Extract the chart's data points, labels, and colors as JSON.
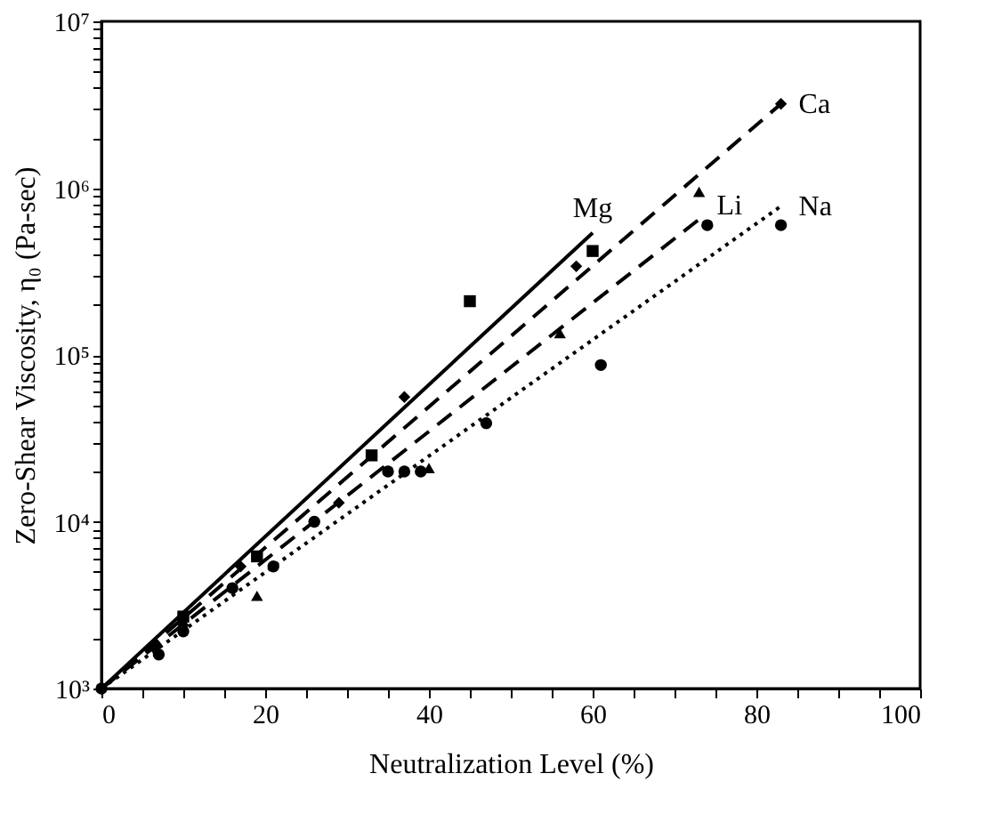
{
  "chart_data": {
    "type": "scatter",
    "xlabel": "Neutralization Level (%)",
    "ylabel": "Zero-Shear Viscosity, η₀ (Pa-sec)",
    "log": "y",
    "grid": false,
    "xlim": [
      0,
      100
    ],
    "ylim": [
      1000,
      10000000
    ],
    "xticks": [
      0,
      {
        "value": 5,
        "label": null
      },
      {
        "value": 10,
        "label": null
      },
      {
        "value": 15,
        "label": null
      },
      20,
      {
        "value": 25,
        "label": null
      },
      {
        "value": 30,
        "label": null
      },
      {
        "value": 35,
        "label": null
      },
      40,
      {
        "value": 45,
        "label": null
      },
      {
        "value": 50,
        "label": null
      },
      {
        "value": 55,
        "label": null
      },
      60,
      {
        "value": 65,
        "label": null
      },
      {
        "value": 70,
        "label": null
      },
      {
        "value": 75,
        "label": null
      },
      80,
      {
        "value": 85,
        "label": null
      },
      {
        "value": 90,
        "label": null
      },
      {
        "value": 95,
        "label": null
      },
      100
    ],
    "yticks": [
      {
        "value": 1000,
        "label": "10³"
      },
      {
        "value": 2000,
        "label": null
      },
      {
        "value": 3000,
        "label": null
      },
      {
        "value": 4000,
        "label": null
      },
      {
        "value": 5000,
        "label": null
      },
      {
        "value": 6000,
        "label": null
      },
      {
        "value": 7000,
        "label": null
      },
      {
        "value": 8000,
        "label": null
      },
      {
        "value": 9000,
        "label": null
      },
      {
        "value": 10000,
        "label": "10⁴"
      },
      {
        "value": 20000,
        "label": null
      },
      {
        "value": 30000,
        "label": null
      },
      {
        "value": 40000,
        "label": null
      },
      {
        "value": 50000,
        "label": null
      },
      {
        "value": 60000,
        "label": null
      },
      {
        "value": 70000,
        "label": null
      },
      {
        "value": 80000,
        "label": null
      },
      {
        "value": 90000,
        "label": null
      },
      {
        "value": 100000,
        "label": "10⁵"
      },
      {
        "value": 200000,
        "label": null
      },
      {
        "value": 300000,
        "label": null
      },
      {
        "value": 400000,
        "label": null
      },
      {
        "value": 500000,
        "label": null
      },
      {
        "value": 600000,
        "label": null
      },
      {
        "value": 700000,
        "label": null
      },
      {
        "value": 800000,
        "label": null
      },
      {
        "value": 900000,
        "label": null
      },
      {
        "value": 1000000,
        "label": "10⁶"
      },
      {
        "value": 2000000,
        "label": null
      },
      {
        "value": 3000000,
        "label": null
      },
      {
        "value": 4000000,
        "label": null
      },
      {
        "value": 5000000,
        "label": null
      },
      {
        "value": 6000000,
        "label": null
      },
      {
        "value": 7000000,
        "label": null
      },
      {
        "value": 8000000,
        "label": null
      },
      {
        "value": 9000000,
        "label": null
      },
      {
        "value": 10000000,
        "label": "10⁷"
      }
    ],
    "series": [
      {
        "type": "line",
        "name": "Mg",
        "color": "#000000",
        "line_style": "solid",
        "x": [
          0,
          60
        ],
        "values": [
          1000,
          540000
        ]
      },
      {
        "type": "line",
        "name": "Ca",
        "color": "#000000",
        "line_style": "dashed",
        "x": [
          0,
          83
        ],
        "values": [
          1000,
          3200000
        ]
      },
      {
        "type": "line",
        "name": "Li",
        "color": "#000000",
        "line_style": "dashed",
        "x": [
          0,
          73
        ],
        "values": [
          1000,
          650000
        ]
      },
      {
        "type": "line",
        "name": "Na",
        "color": "#000000",
        "line_style": "dotted",
        "x": [
          0,
          83
        ],
        "values": [
          1000,
          780000
        ]
      },
      {
        "marker": "square",
        "color": "#000000",
        "x": [
          10,
          19,
          33,
          45,
          60
        ],
        "values": [
          2700,
          6200,
          25000,
          210000,
          420000
        ]
      },
      {
        "marker": "diamond",
        "color": "#000000",
        "x": [
          10,
          17,
          29,
          37,
          58,
          83
        ],
        "values": [
          2400,
          5400,
          13000,
          56000,
          340000,
          3200000
        ]
      },
      {
        "marker": "triangle",
        "color": "#000000",
        "x": [
          19,
          40,
          56,
          73
        ],
        "values": [
          3600,
          21000,
          135000,
          950000
        ]
      },
      {
        "marker": "circle",
        "color": "#000000",
        "x": [
          0,
          6.5,
          7,
          10,
          16,
          21,
          26,
          35,
          37,
          39,
          47,
          61,
          74,
          83
        ],
        "values": [
          1000,
          1800,
          1600,
          2200,
          4000,
          5400,
          10000,
          20000,
          20000,
          20000,
          39000,
          87000,
          600000,
          600000
        ]
      }
    ]
  }
}
